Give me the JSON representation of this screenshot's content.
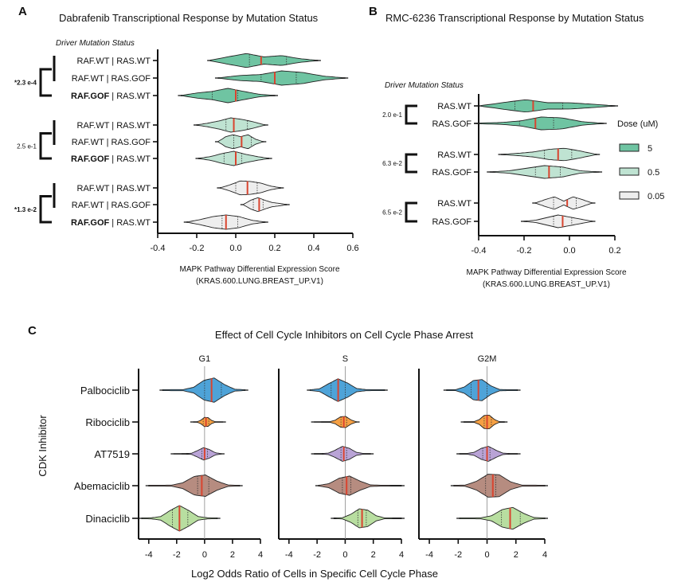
{
  "chart_data": [
    {
      "panel": "A",
      "type": "violin",
      "orientation": "horizontal",
      "title": "Dabrafenib Transcriptional Response by Mutation Status",
      "group_header": "Driver Mutation Status",
      "xlabel": "MAPK Pathway Differential Expression Score",
      "xlabel2": "(KRAS.600.LUNG.BREAST_UP.V1)",
      "xlim": [
        -0.4,
        0.6
      ],
      "xticks": [
        "-0.4",
        "-0.2",
        "0.0",
        "0.2",
        "0.4",
        "0.6"
      ],
      "dose_groups": [
        {
          "dose": "5",
          "color": "#6fc4a2",
          "pvalue": "*2.3 e-4",
          "rows": [
            {
              "label_bold": "",
              "label": "RAF.WT | RAS.WT",
              "min": -0.13,
              "max": 0.42,
              "median": 0.13,
              "q1": 0.07,
              "q3": 0.26,
              "shape": [
                0.1,
                0.6,
                1.0,
                0.5,
                0.7,
                0.3,
                0.05
              ]
            },
            {
              "label_bold": "",
              "label": "RAF.WT | RAS.GOF",
              "min": -0.09,
              "max": 0.56,
              "median": 0.2,
              "q1": 0.13,
              "q3": 0.31,
              "shape": [
                0.05,
                0.4,
                0.5,
                1.0,
                0.8,
                0.3,
                0.05
              ]
            },
            {
              "label_bold": "RAF.GOF",
              "label": " | RAS.WT",
              "min": -0.28,
              "max": 0.2,
              "median": 0.0,
              "q1": -0.12,
              "q3": 0.01,
              "shape": [
                0.05,
                0.4,
                0.6,
                1.0,
                0.6,
                0.2,
                0.05
              ]
            }
          ]
        },
        {
          "dose": "0.5",
          "color": "#bfe3d2",
          "pvalue": "2.5 e-1",
          "rows": [
            {
              "label_bold": "",
              "label": "RAF.WT | RAS.WT",
              "min": -0.2,
              "max": 0.15,
              "median": -0.01,
              "q1": -0.05,
              "q3": 0.06,
              "shape": [
                0.05,
                0.3,
                0.6,
                1.0,
                0.8,
                0.5,
                0.05
              ]
            },
            {
              "label_bold": "",
              "label": "RAF.WT | RAS.GOF",
              "min": -0.09,
              "max": 0.14,
              "median": 0.03,
              "q1": -0.01,
              "q3": 0.08,
              "shape": [
                0.1,
                0.8,
                1.0,
                0.7,
                1.0,
                0.4,
                0.05
              ]
            },
            {
              "label_bold": "RAF.GOF",
              "label": " | RAS.WT",
              "min": -0.19,
              "max": 0.17,
              "median": 0.0,
              "q1": -0.06,
              "q3": 0.03,
              "shape": [
                0.05,
                0.3,
                0.7,
                1.0,
                0.6,
                0.3,
                0.05
              ]
            }
          ]
        },
        {
          "dose": "0.05",
          "color": "#eeeeee",
          "pvalue": "*1.3 e-2",
          "rows": [
            {
              "label_bold": "",
              "label": "RAF.WT | RAS.WT",
              "min": -0.08,
              "max": 0.23,
              "median": 0.06,
              "q1": 0.0,
              "q3": 0.11,
              "shape": [
                0.05,
                0.5,
                1.0,
                0.9,
                0.7,
                0.3,
                0.05
              ]
            },
            {
              "label_bold": "",
              "label": "RAF.WT | RAS.GOF",
              "min": 0.04,
              "max": 0.26,
              "median": 0.12,
              "q1": 0.09,
              "q3": 0.14,
              "shape": [
                0.1,
                0.7,
                1.0,
                0.6,
                0.3,
                0.2,
                0.05
              ]
            },
            {
              "label_bold": "RAF.GOF",
              "label": " | RAS.WT",
              "min": -0.25,
              "max": 0.15,
              "median": -0.05,
              "q1": -0.07,
              "q3": 0.01,
              "shape": [
                0.05,
                0.4,
                0.8,
                1.0,
                0.8,
                0.3,
                0.05
              ]
            }
          ]
        }
      ]
    },
    {
      "panel": "B",
      "type": "violin",
      "orientation": "horizontal",
      "title": "RMC-6236 Transcriptional Response by Mutation Status",
      "group_header": "Driver Mutation Status",
      "xlabel": "MAPK Pathway Differential Expression Score",
      "xlabel2": "(KRAS.600.LUNG.BREAST_UP.V1)",
      "xlim": [
        -0.4,
        0.2
      ],
      "xticks": [
        "-0.4",
        "-0.2",
        "0.0",
        "0.2"
      ],
      "legend": {
        "title": "Dose (uM)",
        "entries": [
          "5",
          "0.5",
          "0.05"
        ],
        "position": "right"
      },
      "dose_groups": [
        {
          "dose": "5",
          "color": "#6fc4a2",
          "pvalue": "2.0 e-1",
          "rows": [
            {
              "label": "RAS.WT",
              "min": -0.39,
              "max": 0.2,
              "median": -0.16,
              "q1": -0.24,
              "q3": -0.03,
              "shape": [
                0.1,
                0.6,
                1.0,
                0.5,
                0.5,
                0.3,
                0.05
              ]
            },
            {
              "label": "RAS.GOF",
              "min": -0.4,
              "max": 0.15,
              "median": -0.15,
              "q1": -0.22,
              "q3": -0.07,
              "shape": [
                0.1,
                0.15,
                0.4,
                1.0,
                0.9,
                0.3,
                0.05
              ]
            }
          ]
        },
        {
          "dose": "0.5",
          "color": "#bfe3d2",
          "pvalue": "6.3 e-2",
          "rows": [
            {
              "label": "RAS.WT",
              "min": -0.3,
              "max": 0.12,
              "median": -0.05,
              "q1": -0.11,
              "q3": 0.01,
              "shape": [
                0.05,
                0.2,
                0.4,
                0.8,
                1.0,
                0.6,
                0.05
              ]
            },
            {
              "label": "RAS.GOF",
              "min": -0.35,
              "max": 0.13,
              "median": -0.09,
              "q1": -0.15,
              "q3": -0.04,
              "shape": [
                0.05,
                0.2,
                0.6,
                1.0,
                0.8,
                0.2,
                0.05
              ]
            }
          ]
        },
        {
          "dose": "0.05",
          "color": "#eeeeee",
          "pvalue": "6.5 e-2",
          "rows": [
            {
              "label": "RAS.WT",
              "min": -0.15,
              "max": 0.1,
              "median": -0.01,
              "q1": -0.07,
              "q3": 0.03,
              "shape": [
                0.05,
                0.6,
                1.0,
                0.3,
                1.0,
                0.6,
                0.05
              ]
            },
            {
              "label": "RAS.GOF",
              "min": -0.2,
              "max": 0.1,
              "median": -0.03,
              "q1": -0.07,
              "q3": 0.01,
              "shape": [
                0.05,
                0.2,
                0.6,
                1.0,
                0.7,
                0.4,
                0.05
              ]
            }
          ]
        }
      ]
    },
    {
      "panel": "C",
      "type": "violin",
      "orientation": "horizontal",
      "title": "Effect of Cell Cycle Inhibitors on Cell Cycle Phase Arrest",
      "ylabel": "CDK Inhibitor",
      "xlabel": "Log2 Odds Ratio of Cells in Specific Cell Cycle Phase",
      "xlim": [
        -4.5,
        4
      ],
      "xticks": [
        "-4",
        "-2",
        "0",
        "2",
        "4"
      ],
      "categories": [
        "Palbociclib",
        "Ribociclib",
        "AT7519",
        "Abemaciclib",
        "Dinaciclib"
      ],
      "colors": [
        "#4ea3d8",
        "#f5a044",
        "#b9a3d6",
        "#b68c80",
        "#b8dea0"
      ],
      "facets": [
        {
          "phase": "G1",
          "violins": [
            {
              "min": -3.0,
              "max": 2.9,
              "median": 0.5,
              "q1": 0.0,
              "q3": 1.2,
              "width": 1.0
            },
            {
              "min": -0.8,
              "max": 1.3,
              "median": 0.1,
              "q1": -0.1,
              "q3": 0.3,
              "width": 0.4
            },
            {
              "min": -2.2,
              "max": 1.2,
              "median": 0.0,
              "q1": -0.2,
              "q3": 0.2,
              "width": 0.5
            },
            {
              "min": -4.0,
              "max": 2.5,
              "median": -0.2,
              "q1": -0.5,
              "q3": 0.3,
              "width": 0.9
            },
            {
              "min": -4.5,
              "max": 0.9,
              "median": -1.8,
              "q1": -2.3,
              "q3": -1.2,
              "width": 1.0
            }
          ]
        },
        {
          "phase": "S",
          "violins": [
            {
              "min": -2.5,
              "max": 2.8,
              "median": -0.5,
              "q1": -1.0,
              "q3": 0.0,
              "width": 0.9
            },
            {
              "min": -2.2,
              "max": 0.8,
              "median": -0.1,
              "q1": -0.3,
              "q3": 0.1,
              "width": 0.5
            },
            {
              "min": -2.2,
              "max": 1.8,
              "median": -0.1,
              "q1": -0.3,
              "q3": 0.1,
              "width": 0.6
            },
            {
              "min": -1.9,
              "max": 4.0,
              "median": 0.1,
              "q1": -0.2,
              "q3": 0.4,
              "width": 0.8
            },
            {
              "min": -0.8,
              "max": 4.0,
              "median": 1.2,
              "q1": 0.9,
              "q3": 1.5,
              "width": 0.8
            }
          ]
        },
        {
          "phase": "G2M",
          "violins": [
            {
              "min": -2.8,
              "max": 2.1,
              "median": -0.6,
              "q1": -1.1,
              "q3": 0.0,
              "width": 0.9
            },
            {
              "min": -1.6,
              "max": 1.2,
              "median": 0.0,
              "q1": -0.2,
              "q3": 0.3,
              "width": 0.6
            },
            {
              "min": -1.9,
              "max": 2.1,
              "median": 0.0,
              "q1": -0.3,
              "q3": 0.2,
              "width": 0.6
            },
            {
              "min": -2.3,
              "max": 4.0,
              "median": 0.4,
              "q1": -0.1,
              "q3": 0.6,
              "width": 1.0
            },
            {
              "min": -1.9,
              "max": 4.0,
              "median": 1.6,
              "q1": 1.0,
              "q3": 2.3,
              "width": 0.9
            }
          ]
        }
      ]
    }
  ]
}
